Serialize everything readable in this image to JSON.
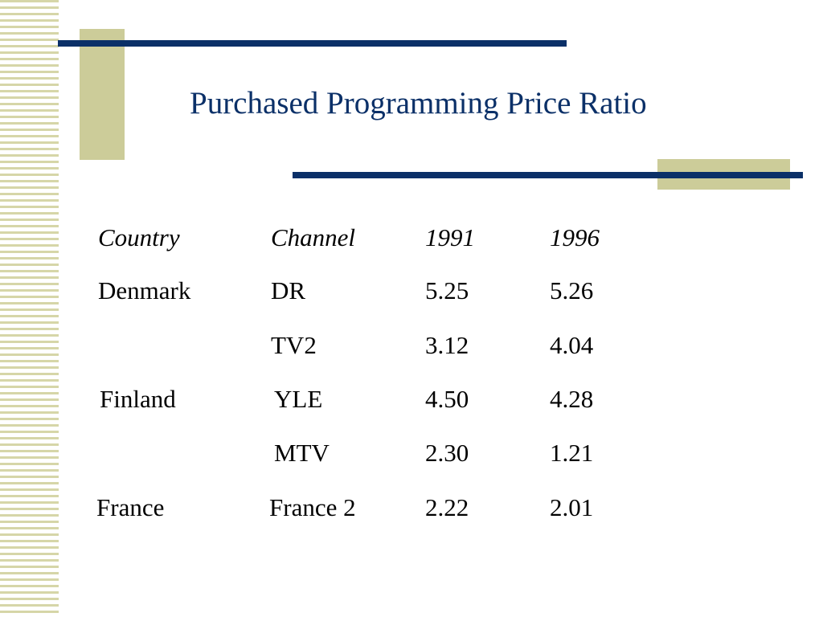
{
  "slide": {
    "title": "Purchased Programming Price Ratio"
  },
  "table": {
    "headers": {
      "country": "Country",
      "channel": "Channel",
      "y1991": "1991",
      "y1996": "1996"
    },
    "rows": [
      {
        "country": "Denmark",
        "channel": "DR",
        "y1991": "5.25",
        "y1996": "5.26"
      },
      {
        "country": "",
        "channel": "TV2",
        "y1991": "3.12",
        "y1996": "4.04"
      },
      {
        "country": "Finland",
        "channel": "YLE",
        "y1991": "4.50",
        "y1996": "4.28"
      },
      {
        "country": "",
        "channel": "MTV",
        "y1991": "2.30",
        "y1996": "1.21"
      },
      {
        "country": "France",
        "channel": "France 2",
        "y1991": "2.22",
        "y1996": "2.01"
      }
    ]
  },
  "colors": {
    "title": "#0b3068",
    "rule": "#0b3068",
    "accent": "#cccc99",
    "stripe": "#d6d6a8"
  }
}
